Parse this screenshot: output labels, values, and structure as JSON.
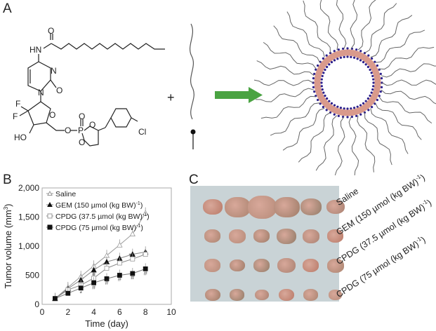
{
  "panels": {
    "a": {
      "label": "A",
      "molecule_atoms": [
        "O",
        "HN",
        "N",
        "N",
        "O",
        "F",
        "F",
        "O",
        "HO",
        "O",
        "O",
        "P",
        "O",
        "O",
        "Cl"
      ],
      "plus": "+",
      "arrow_color": "#4aa342",
      "micelle_head_color": "#2b1f8c",
      "micelle_tail_color": "#d99a8c"
    },
    "b": {
      "label": "B"
    },
    "c": {
      "label": "C",
      "row_labels": [
        "Saline",
        "GEM (150 µmol (kg BW)",
        "CPDG (37.5 µmol (kg BW)",
        "CPDG (75 µmol (kg BW)"
      ],
      "row_label_sup": "-1",
      "photo_bg": "#c9d3d6"
    }
  },
  "chart_data": {
    "type": "line",
    "title": "",
    "xlabel": "Time (day)",
    "ylabel": "Tumor volume (mm3)",
    "xlim": [
      0,
      10
    ],
    "ylim": [
      0,
      2000
    ],
    "xticks": [
      "0",
      "2",
      "4",
      "6",
      "8",
      "10"
    ],
    "yticks": [
      "0",
      "500",
      "1,000",
      "1,500",
      "2,000"
    ],
    "legend_position": "upper left",
    "x": [
      1,
      2,
      3,
      4,
      5,
      6,
      7,
      8
    ],
    "series": [
      {
        "name": "Saline",
        "marker": "open triangle",
        "values": [
          100,
          290,
          480,
          660,
          840,
          1020,
          1210,
          1570
        ]
      },
      {
        "name": "GEM (150 µmol (kg BW)-1)",
        "marker": "filled triangle",
        "values": [
          100,
          270,
          420,
          590,
          730,
          790,
          860,
          900
        ]
      },
      {
        "name": "CPDG (37.5 µmol (kg BW)-1)",
        "marker": "open square",
        "values": [
          100,
          250,
          330,
          450,
          620,
          710,
          780,
          860
        ]
      },
      {
        "name": "CPDG (75 µmol (kg BW)-1)",
        "marker": "filled square",
        "values": [
          100,
          190,
          280,
          370,
          440,
          500,
          530,
          610
        ]
      }
    ],
    "annotations": [
      {
        "text": "*",
        "x": 3,
        "y": 150
      },
      {
        "text": "#",
        "x": 4,
        "y": 260
      },
      {
        "text": "#",
        "x": 4,
        "y": 480
      },
      {
        "text": "#",
        "x": 5,
        "y": 340
      },
      {
        "text": "#",
        "x": 6,
        "y": 400
      },
      {
        "text": "#",
        "x": 7,
        "y": 430
      },
      {
        "text": "#",
        "x": 8,
        "y": 500
      },
      {
        "text": "*",
        "x": 4.8,
        "y": 640
      },
      {
        "text": "*",
        "x": 6.8,
        "y": 800
      }
    ],
    "grid": false
  }
}
